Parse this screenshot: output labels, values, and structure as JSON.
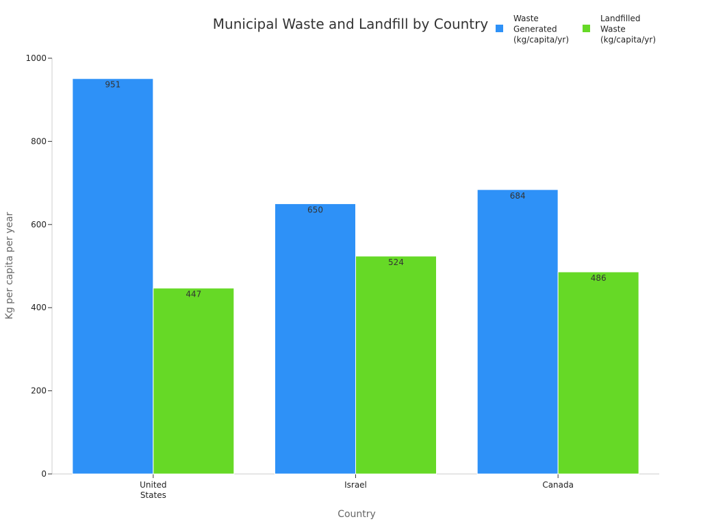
{
  "chart_data": {
    "type": "bar",
    "title": "Municipal Waste and Landfill by Country",
    "xlabel": "Country",
    "ylabel": "Kg per capita per year",
    "categories": [
      [
        "United",
        "States"
      ],
      [
        "Israel"
      ],
      [
        "Canada"
      ]
    ],
    "series": [
      {
        "name": [
          "Waste",
          "Generated",
          "(kg/capita/yr)"
        ],
        "values": [
          951,
          650,
          684
        ],
        "color": "#2E91F7"
      },
      {
        "name": [
          "Landfilled",
          "Waste",
          "(kg/capita/yr)"
        ],
        "values": [
          447,
          524,
          486
        ],
        "color": "#66D926"
      }
    ],
    "ylim": [
      0,
      1000
    ],
    "yticks": [
      "0",
      "200",
      "400",
      "600",
      "800",
      "1000"
    ],
    "grid": false,
    "legend": "top-right"
  }
}
